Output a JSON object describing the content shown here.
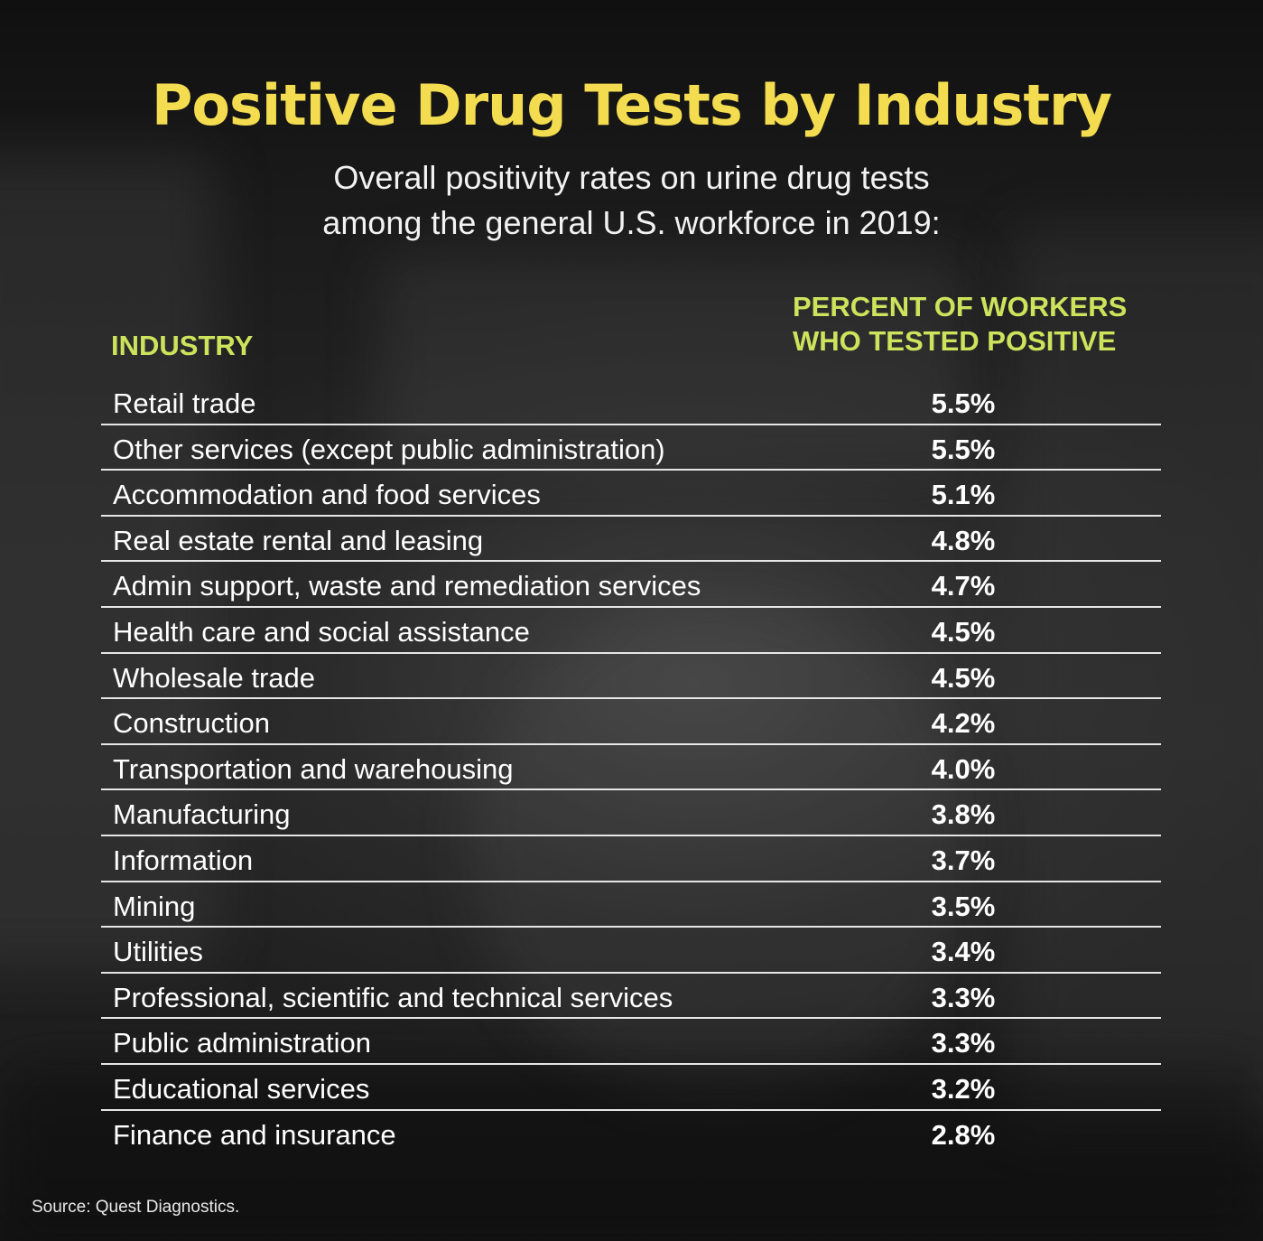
{
  "header": {
    "title": "Positive Drug Tests by Industry",
    "subtitle_line1": "Overall positivity rates on urine drug tests",
    "subtitle_line2": "among the general U.S. workforce in 2019:"
  },
  "columns": {
    "industry": "INDUSTRY",
    "percent_line1": "PERCENT OF WORKERS",
    "percent_line2": "WHO TESTED POSITIVE"
  },
  "footer": {
    "source": "Source: Quest Diagnostics."
  },
  "colors": {
    "title": "#f3dc4f",
    "column_headers": "#cde35c",
    "text": "#ffffff",
    "divider": "#e6e6e6"
  },
  "chart_data": {
    "type": "table",
    "title": "Positive Drug Tests by Industry",
    "subtitle": "Overall positivity rates on urine drug tests among the general U.S. workforce in 2019:",
    "headers": [
      "INDUSTRY",
      "PERCENT OF WORKERS WHO TESTED POSITIVE"
    ],
    "rows": [
      {
        "industry": "Retail trade",
        "percent": "5.5%"
      },
      {
        "industry": "Other services (except public administration)",
        "percent": "5.5%"
      },
      {
        "industry": "Accommodation and food services",
        "percent": "5.1%"
      },
      {
        "industry": "Real estate rental and leasing",
        "percent": "4.8%"
      },
      {
        "industry": "Admin support, waste and remediation services",
        "percent": "4.7%"
      },
      {
        "industry": "Health care and social assistance",
        "percent": "4.5%"
      },
      {
        "industry": "Wholesale trade",
        "percent": "4.5%"
      },
      {
        "industry": "Construction",
        "percent": "4.2%"
      },
      {
        "industry": "Transportation and warehousing",
        "percent": "4.0%"
      },
      {
        "industry": "Manufacturing",
        "percent": "3.8%"
      },
      {
        "industry": "Information",
        "percent": "3.7%"
      },
      {
        "industry": "Mining",
        "percent": "3.5%"
      },
      {
        "industry": "Utilities",
        "percent": "3.4%"
      },
      {
        "industry": "Professional, scientific and technical services",
        "percent": "3.3%"
      },
      {
        "industry": "Public administration",
        "percent": "3.3%"
      },
      {
        "industry": "Educational services",
        "percent": "3.2%"
      },
      {
        "industry": "Finance and insurance",
        "percent": "2.8%"
      }
    ],
    "source": "Source: Quest Diagnostics."
  }
}
